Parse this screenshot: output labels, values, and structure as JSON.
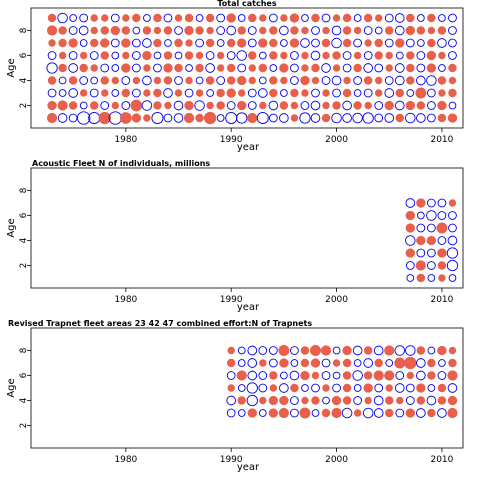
{
  "chart_data": [
    {
      "type": "scatter",
      "title": "Total catches",
      "xlabel": "year",
      "ylabel": "Age",
      "xlim": [
        1971,
        2012
      ],
      "ylim": [
        0.2,
        9.8
      ],
      "xticks": [
        1980,
        1990,
        2000,
        2010
      ],
      "yticks": [
        2,
        4,
        6,
        8
      ],
      "grid": false,
      "legend": "none",
      "marker": "bubble",
      "colors": {
        "positive": "#e8604c",
        "negative": "#0000ee"
      },
      "bubbles": "dense grid of residual bubbles, ages 1-9, years 1973-2011",
      "x": [
        1973,
        1974,
        1975,
        1976,
        1977,
        1978,
        1979,
        1980,
        1981,
        1982,
        1983,
        1984,
        1985,
        1986,
        1987,
        1988,
        1989,
        1990,
        1991,
        1992,
        1993,
        1994,
        1995,
        1996,
        1997,
        1998,
        1999,
        2000,
        2001,
        2002,
        2003,
        2004,
        2005,
        2006,
        2007,
        2008,
        2009,
        2010,
        2011
      ],
      "ages": [
        1,
        2,
        3,
        4,
        5,
        6,
        7,
        8,
        9
      ],
      "residuals": [
        [
          0.6,
          -0.5,
          -0.4,
          -1.0,
          -0.8,
          0.9,
          -1.0,
          0.8,
          0.5,
          0.3,
          -0.8,
          -0.4,
          -0.5,
          0.6,
          0.4,
          0.9,
          -0.3,
          -0.8,
          -0.7,
          0.6,
          -0.8,
          -0.4,
          -0.5,
          0.3,
          -0.7,
          -0.5,
          0.4,
          -0.6,
          -0.5,
          -0.6,
          -0.7,
          -0.4,
          -0.5,
          0.4,
          -0.6,
          -0.5,
          -0.4,
          0.4,
          0.5
        ],
        [
          0.5,
          0.6,
          0.4,
          -0.3,
          0.4,
          -0.4,
          0.3,
          -0.4,
          0.8,
          -0.6,
          0.4,
          0.3,
          -0.5,
          0.5,
          -0.6,
          0.3,
          0.4,
          -0.4,
          0.5,
          -0.4,
          0.3,
          -0.5,
          0.4,
          0.3,
          -0.4,
          -0.5,
          0.3,
          0.4,
          -0.5,
          0.4,
          0.3,
          -0.4,
          0.5,
          -0.5,
          0.5,
          0.4,
          -0.4,
          0.5,
          -0.3
        ],
        [
          -0.4,
          -0.3,
          -0.5,
          0.3,
          -0.4,
          0.3,
          -0.3,
          0.4,
          -0.4,
          0.3,
          0.4,
          -0.5,
          0.3,
          -0.4,
          0.3,
          -0.3,
          0.4,
          0.5,
          0.3,
          -0.4,
          -0.5,
          0.4,
          -0.3,
          0.4,
          0.3,
          -0.4,
          0.3,
          -0.4,
          0.4,
          -0.3,
          -0.4,
          0.3,
          -0.5,
          0.4,
          -0.3,
          0.7,
          -0.4,
          0.3,
          0.4
        ],
        [
          0.4,
          -0.3,
          0.4,
          -0.4,
          -0.3,
          0.4,
          0.3,
          -0.4,
          0.3,
          -0.5,
          0.3,
          0.4,
          -0.4,
          0.3,
          -0.3,
          0.4,
          -0.4,
          0.4,
          0.5,
          0.3,
          -0.3,
          0.4,
          0.3,
          -0.4,
          0.5,
          0.3,
          -0.4,
          -0.5,
          0.3,
          -0.4,
          0.4,
          0.3,
          -0.4,
          -0.5,
          0.4,
          -0.5,
          -0.6,
          0.4,
          0.3
        ],
        [
          -0.7,
          0.4,
          -0.5,
          0.4,
          0.3,
          -0.4,
          -0.3,
          0.5,
          -0.4,
          0.3,
          -0.4,
          0.5,
          0.4,
          -0.3,
          0.4,
          -0.5,
          0.3,
          0.4,
          -0.4,
          0.3,
          0.4,
          -0.3,
          0.5,
          -0.4,
          0.3,
          0.4,
          -0.5,
          0.3,
          -0.4,
          0.4,
          -0.5,
          -0.4,
          0.3,
          -0.5,
          0.4,
          -0.4,
          0.5,
          -0.3,
          0.4
        ],
        [
          -0.4,
          0.3,
          -0.4,
          0.3,
          -0.4,
          0.4,
          -0.3,
          0.3,
          -0.4,
          0.5,
          -0.3,
          0.4,
          -0.3,
          0.4,
          0.3,
          -0.4,
          0.3,
          -0.4,
          -0.6,
          0.4,
          -0.3,
          0.4,
          0.3,
          -0.4,
          0.3,
          -0.5,
          0.3,
          0.4,
          -0.4,
          0.3,
          -0.4,
          0.4,
          0.3,
          -0.3,
          0.4,
          -0.4,
          0.5,
          0.3,
          -0.4
        ],
        [
          0.3,
          0.4,
          0.5,
          -0.3,
          0.4,
          0.5,
          -0.4,
          0.5,
          -0.4,
          -0.5,
          0.4,
          -0.3,
          0.4,
          0.3,
          -0.4,
          0.4,
          -0.3,
          0.4,
          0.5,
          -0.4,
          0.5,
          0.4,
          -0.3,
          0.5,
          -0.5,
          -0.4,
          0.4,
          -0.6,
          0.4,
          -0.4,
          0.3,
          0.4,
          -0.4,
          0.5,
          -0.4,
          -0.3,
          0.4,
          -0.5,
          -0.4
        ],
        [
          0.6,
          0.4,
          -0.4,
          -0.5,
          0.3,
          0.4,
          0.5,
          0.4,
          -0.3,
          0.4,
          0.3,
          0.4,
          -0.4,
          0.5,
          0.4,
          0.3,
          -0.4,
          -0.5,
          0.4,
          -0.4,
          0.3,
          0.4,
          -0.5,
          0.4,
          0.3,
          -0.4,
          0.3,
          -0.5,
          0.4,
          0.3,
          -0.4,
          -0.3,
          0.4,
          -0.5,
          0.5,
          0.4,
          0.3,
          0.4,
          -0.4
        ],
        [
          0.4,
          -0.6,
          -0.3,
          -0.4,
          0.3,
          0.3,
          -0.4,
          0.3,
          0.4,
          -0.3,
          0.4,
          -0.4,
          0.3,
          0.4,
          -0.3,
          0.4,
          -0.4,
          0.5,
          -0.3,
          0.4,
          0.3,
          -0.4,
          0.3,
          0.5,
          -0.3,
          0.4,
          -0.4,
          0.3,
          0.4,
          -0.3,
          0.4,
          0.3,
          -0.4,
          -0.5,
          0.4,
          -0.3,
          0.4,
          -0.3,
          -0.4
        ]
      ]
    },
    {
      "type": "scatter",
      "title": "Acoustic Fleet  N of individuals, millions",
      "xlabel": "year",
      "ylabel": "Age",
      "xlim": [
        1971,
        2012
      ],
      "ylim": [
        0.2,
        9.8
      ],
      "xticks": [
        1980,
        1990,
        2000,
        2010
      ],
      "yticks": [
        2,
        4,
        6,
        8
      ],
      "grid": false,
      "legend": "none",
      "marker": "bubble",
      "colors": {
        "positive": "#e8604c",
        "negative": "#0000ee"
      },
      "bubbles": "residual bubbles, ages 1-7, years 2007-2011",
      "x": [
        2007,
        2008,
        2009,
        2010,
        2011
      ],
      "ages": [
        1,
        2,
        3,
        4,
        5,
        6,
        7
      ],
      "residuals": [
        [
          -0.3,
          0.4,
          -0.3,
          0.3,
          -0.3
        ],
        [
          -0.4,
          0.6,
          -0.4,
          0.4,
          -0.7
        ],
        [
          0.5,
          -0.4,
          -0.4,
          0.5,
          -0.7
        ],
        [
          -0.6,
          0.5,
          0.5,
          -0.4,
          -0.5
        ],
        [
          0.5,
          -0.4,
          -0.4,
          0.7,
          -0.4
        ],
        [
          0.5,
          -0.3,
          -0.6,
          -0.4,
          -0.4
        ],
        [
          -0.5,
          0.5,
          -0.4,
          -0.4,
          0.3
        ]
      ]
    },
    {
      "type": "scatter",
      "title": "Revised Trapnet fleet areas 23 42 47 combined  effort:N of Trapnets",
      "xlabel": "year",
      "ylabel": "Age",
      "xlim": [
        1971,
        2012
      ],
      "ylim": [
        0.2,
        9.8
      ],
      "xticks": [
        1980,
        1990,
        2000,
        2010
      ],
      "yticks": [
        2,
        4,
        6,
        8
      ],
      "grid": false,
      "legend": "none",
      "marker": "bubble",
      "colors": {
        "positive": "#e8604c",
        "negative": "#0000ee"
      },
      "bubbles": "residual bubbles, ages 3-8, years 1990-2011",
      "x": [
        1990,
        1991,
        1992,
        1993,
        1994,
        1995,
        1996,
        1997,
        1998,
        1999,
        2000,
        2001,
        2002,
        2003,
        2004,
        2005,
        2006,
        2007,
        2008,
        2009,
        2010,
        2011
      ],
      "ages": [
        3,
        4,
        5,
        6,
        7,
        8
      ],
      "residuals": [
        [
          -0.4,
          -0.3,
          0.5,
          -0.3,
          0.5,
          0.6,
          -0.4,
          0.7,
          -0.3,
          0.4,
          0.6,
          -0.6,
          0.3,
          -0.6,
          -0.5,
          0.4,
          -0.4,
          0.5,
          -0.5,
          0.4,
          -0.5,
          0.6
        ],
        [
          -0.5,
          0.4,
          -0.7,
          0.3,
          0.5,
          0.5,
          -0.4,
          0.3,
          0.4,
          -0.3,
          0.5,
          0.4,
          -0.4,
          0.3,
          -0.5,
          0.4,
          0.3,
          -0.4,
          0.4,
          -0.5,
          0.4,
          0.5
        ],
        [
          0.3,
          -0.3,
          -0.7,
          -0.4,
          0.3,
          -0.5,
          0.4,
          -0.3,
          -0.4,
          0.3,
          -0.4,
          0.4,
          -0.3,
          0.5,
          -0.4,
          0.3,
          -0.5,
          -0.4,
          0.5,
          -0.3,
          0.4,
          -0.5
        ],
        [
          -0.4,
          0.6,
          -0.5,
          -0.4,
          0.4,
          -0.3,
          -0.5,
          0.5,
          0.3,
          -0.4,
          -0.3,
          0.4,
          -0.6,
          0.4,
          0.6,
          0.6,
          -0.4,
          0.3,
          -0.5,
          0.4,
          -0.4,
          0.6
        ],
        [
          0.4,
          -0.3,
          -0.5,
          0.3,
          -0.4,
          0.5,
          -0.3,
          0.4,
          0.5,
          -0.4,
          0.3,
          0.4,
          -0.3,
          -0.5,
          0.4,
          -0.3,
          0.7,
          0.9,
          -0.5,
          0.4,
          -0.3,
          0.4
        ],
        [
          0.3,
          -0.3,
          -0.5,
          -0.4,
          -0.4,
          0.7,
          -0.4,
          0.4,
          0.7,
          0.6,
          -0.3,
          0.5,
          -0.5,
          0.4,
          -0.5,
          0.6,
          -0.6,
          -0.6,
          0.4,
          -0.3,
          0.5,
          0.3
        ]
      ]
    }
  ]
}
